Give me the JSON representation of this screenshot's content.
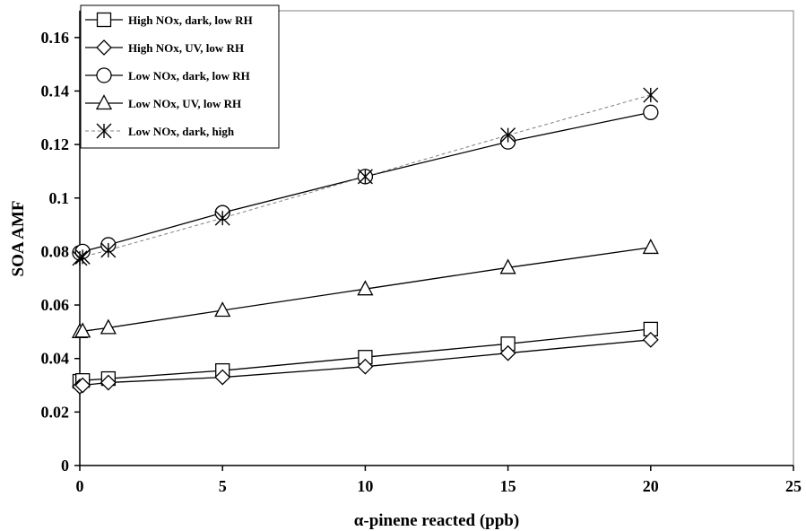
{
  "chart_data": {
    "type": "line",
    "title": "",
    "xlabel": "α-pinene reacted (ppb)",
    "ylabel": "SOA AMF",
    "xlim": [
      0,
      25
    ],
    "ylim": [
      0,
      0.17
    ],
    "xticks": [
      0,
      5,
      10,
      15,
      20,
      25
    ],
    "xtick_labels": [
      "0",
      "5",
      "10",
      "15",
      "20",
      "25"
    ],
    "yticks": [
      0,
      0.02,
      0.04,
      0.06,
      0.08,
      0.1,
      0.12,
      0.14,
      0.16
    ],
    "ytick_labels": [
      "0",
      "0.02",
      "0.04",
      "0.06",
      "0.08",
      "0.1",
      "0.12",
      "0.14",
      "0.16"
    ],
    "grid": false,
    "legend_position": "top-left",
    "series": [
      {
        "name": "High NOx, dark, low RH",
        "marker": "square",
        "line": "solid",
        "x": [
          0,
          0.1,
          1,
          5,
          10,
          15,
          20
        ],
        "y": [
          0.0315,
          0.0318,
          0.0325,
          0.0355,
          0.0405,
          0.0455,
          0.051
        ]
      },
      {
        "name": "High NOx, UV, low RH",
        "marker": "diamond",
        "line": "solid",
        "x": [
          0,
          0.1,
          1,
          5,
          10,
          15,
          20
        ],
        "y": [
          0.0295,
          0.03,
          0.031,
          0.033,
          0.037,
          0.042,
          0.047
        ]
      },
      {
        "name": "Low NOx, dark, low RH",
        "marker": "circle",
        "line": "solid",
        "x": [
          0,
          0.1,
          1,
          5,
          10,
          15,
          20
        ],
        "y": [
          0.0795,
          0.08,
          0.0825,
          0.0945,
          0.108,
          0.121,
          0.132
        ]
      },
      {
        "name": "Low NOx, UV, low RH",
        "marker": "triangle",
        "line": "solid",
        "x": [
          0,
          0.1,
          1,
          5,
          10,
          15,
          20
        ],
        "y": [
          0.05,
          0.0502,
          0.0515,
          0.058,
          0.066,
          0.074,
          0.0815
        ]
      },
      {
        "name": "Low NOx, dark, high",
        "marker": "star",
        "line": "dashed",
        "x": [
          0,
          0.1,
          1,
          5,
          10,
          15,
          20
        ],
        "y": [
          0.0775,
          0.078,
          0.0805,
          0.0925,
          0.108,
          0.1235,
          0.1385
        ]
      }
    ]
  }
}
